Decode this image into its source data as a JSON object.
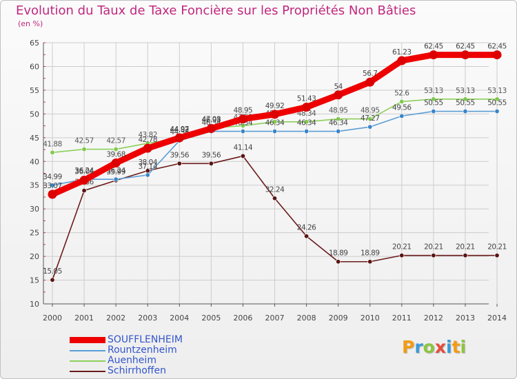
{
  "title": "Evolution du Taux de Taxe Foncière sur les Propriétés Non Bâties",
  "unit_label": "(en %)",
  "brand": {
    "name": "Proxiti",
    "letters": [
      {
        "char": "P",
        "color": "#f39c12"
      },
      {
        "char": "r",
        "color": "#3a9ad9"
      },
      {
        "char": "o",
        "color": "#8cc63f"
      },
      {
        "char": "x",
        "color": "#e74c3c"
      },
      {
        "char": "i",
        "color": "#3a9ad9"
      },
      {
        "char": "t",
        "color": "#f39c12"
      },
      {
        "char": "i",
        "color": "#8cc63f"
      }
    ]
  },
  "colors": {
    "title": "#c0277e",
    "axis": "#555555",
    "grid": "#cccccc"
  },
  "chart_data": {
    "type": "line",
    "x": [
      2000,
      2001,
      2002,
      2003,
      2004,
      2005,
      2006,
      2007,
      2008,
      2009,
      2010,
      2011,
      2012,
      2013,
      2014
    ],
    "ylim": [
      10,
      65
    ],
    "yticks": [
      10,
      15,
      20,
      25,
      30,
      35,
      40,
      45,
      50,
      55,
      60,
      65
    ],
    "grid": true,
    "legend_position": "bottom-left",
    "series": [
      {
        "name": "Schirrhoffen",
        "color": "#6b1a1a",
        "marker_color": "#5a1414",
        "values": [
          15.05,
          33.86,
          35.99,
          38.04,
          39.56,
          39.56,
          41.14,
          32.24,
          24.26,
          18.89,
          18.89,
          20.21,
          20.21,
          20.21,
          20.21
        ],
        "labels": [
          "15.05",
          "33.86",
          "35.99",
          "38.04",
          "39.56",
          "39.56",
          "41.14",
          "32.24",
          "24.26",
          "18.89",
          "18.89",
          "20.21",
          "20.21",
          "20.21",
          "20.21"
        ]
      },
      {
        "name": "Auenheim",
        "color": "#8ccf5a",
        "marker_color": "#7fc94a",
        "values": [
          41.88,
          42.57,
          42.57,
          43.82,
          44.82,
          47.08,
          47.51,
          48.34,
          48.34,
          48.95,
          48.95,
          52.6,
          53.13,
          53.13,
          53.13
        ],
        "labels": [
          "41.88",
          "42.57",
          "42.57",
          "43.82",
          "44.82",
          "47.08",
          "47.51",
          "48.34",
          "48.34",
          "48.95",
          "48.95",
          "52.6",
          "53.13",
          "53.13",
          "53.13"
        ]
      },
      {
        "name": "Rountzenheim",
        "color": "#5a9dd6",
        "marker_color": "#3a84c6",
        "values": [
          34.99,
          36.24,
          36.24,
          37.14,
          44.38,
          46.34,
          46.34,
          46.34,
          46.34,
          46.34,
          47.27,
          49.56,
          50.55,
          50.55,
          50.55
        ],
        "labels": [
          "34.99",
          "36.24",
          "36.24",
          "37.14",
          "44.38",
          "46.34",
          "46.34",
          "46.34",
          "46.34",
          "46.34",
          "47.27",
          "49.56",
          "50.55",
          "50.55",
          "50.55"
        ]
      },
      {
        "name": "SOUFFLENHEIM",
        "color": "#ee0000",
        "marker_color": "#dd0000",
        "values": [
          33.07,
          36.04,
          39.68,
          42.78,
          44.97,
          46.93,
          48.95,
          49.92,
          51.43,
          54.0,
          56.7,
          61.23,
          62.45,
          62.45,
          62.45
        ],
        "labels": [
          "33.07",
          "36.04",
          "39.68",
          "42.78",
          "44.97",
          "46.93",
          "48.95",
          "49.92",
          "51.43",
          "54",
          "56.7",
          "61.23",
          "62.45",
          "62.45",
          "62.45"
        ]
      }
    ]
  }
}
